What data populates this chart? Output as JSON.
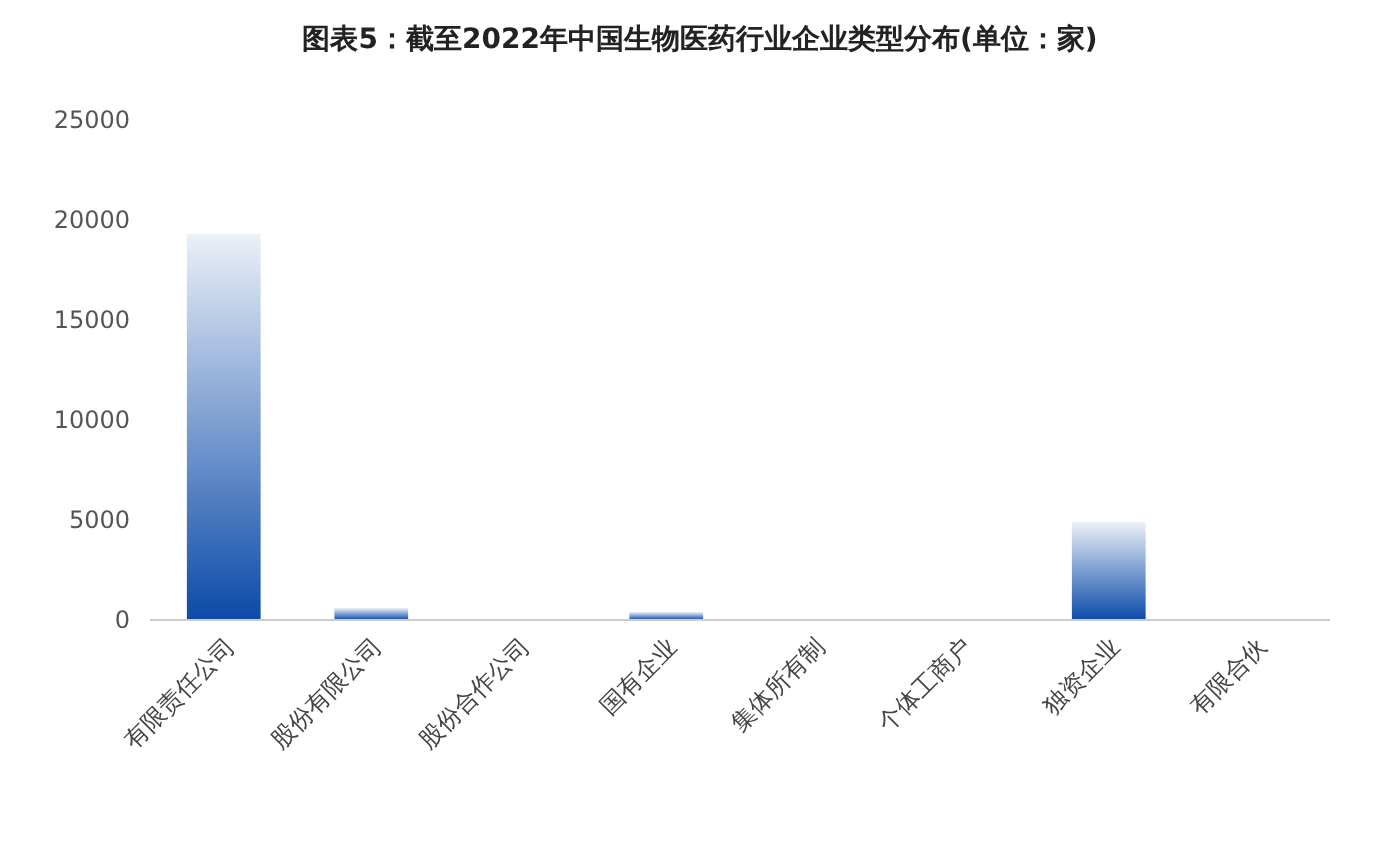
{
  "chart_data": {
    "type": "bar",
    "title": "图表5：截至2022年中国生物医药行业企业类型分布(单位：家)",
    "categories": [
      "有限责任公司",
      "股份有限公司",
      "股份合作公司",
      "国有企业",
      "集体所有制",
      "个体工商户",
      "独资企业",
      "有限合伙"
    ],
    "values": [
      19300,
      600,
      0,
      400,
      0,
      0,
      4900,
      0
    ],
    "color": "#0b4aa8",
    "ylim": [
      0,
      25000
    ],
    "yticks": [
      0,
      5000,
      10000,
      15000,
      20000,
      25000
    ]
  }
}
